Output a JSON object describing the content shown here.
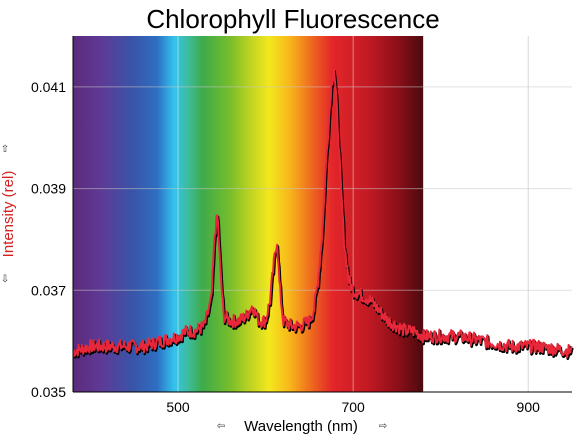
{
  "chart_data": {
    "type": "line",
    "title": "Chlorophyll Fluorescence",
    "xlabel": "Wavelength (nm)",
    "ylabel": "Intensity (rel)",
    "xlim": [
      380,
      950
    ],
    "ylim": [
      0.035,
      0.042
    ],
    "x_ticks": [
      500,
      700,
      900
    ],
    "x_tick_labels": [
      "500",
      "700",
      "900"
    ],
    "y_ticks": [
      0.035,
      0.037,
      0.039,
      0.041
    ],
    "y_tick_labels": [
      "0.035",
      "0.037",
      "0.039",
      "0.041"
    ],
    "grid": true,
    "background": "visible spectrum gradient from 380 to 780 nm",
    "spectrum_end_nm": 780,
    "colors": {
      "line": "#e8283a",
      "line_shadow": "#000000",
      "ylabel": "#d42020",
      "grid": "#d8d8d8"
    },
    "series": [
      {
        "x": [
          380,
          400,
          420,
          440,
          460,
          480,
          500,
          510,
          520,
          530,
          538,
          542,
          545,
          548,
          552,
          560,
          570,
          578,
          585,
          592,
          600,
          605,
          610,
          613,
          616,
          620,
          630,
          640,
          650,
          655,
          660,
          665,
          670,
          675,
          678,
          682,
          686,
          690,
          695,
          700,
          710,
          720,
          730,
          740,
          750,
          760,
          770,
          780,
          790,
          800,
          820,
          850,
          880,
          910,
          950
        ],
        "y": [
          0.0358,
          0.0359,
          0.0359,
          0.0359,
          0.0359,
          0.036,
          0.0361,
          0.0362,
          0.0362,
          0.0363,
          0.0368,
          0.0381,
          0.0385,
          0.0375,
          0.0365,
          0.0364,
          0.0364,
          0.0365,
          0.0367,
          0.0364,
          0.0364,
          0.0368,
          0.0376,
          0.038,
          0.0371,
          0.0364,
          0.0363,
          0.0363,
          0.0364,
          0.0366,
          0.0372,
          0.0382,
          0.0398,
          0.041,
          0.0414,
          0.0404,
          0.039,
          0.0379,
          0.0372,
          0.037,
          0.0369,
          0.0368,
          0.0366,
          0.0364,
          0.0363,
          0.0362,
          0.0362,
          0.0361,
          0.0361,
          0.0361,
          0.0361,
          0.036,
          0.0359,
          0.0359,
          0.0358
        ]
      }
    ]
  }
}
